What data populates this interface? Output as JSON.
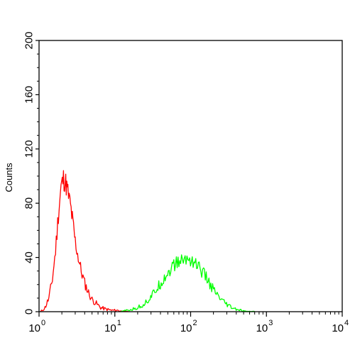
{
  "chart_data": {
    "type": "line",
    "ylabel": "Counts",
    "xscale": "log",
    "xlim": [
      1,
      10000
    ],
    "ylim": [
      0,
      200
    ],
    "grid": false,
    "x_ticks": [
      {
        "base": "10",
        "exp": "0",
        "value": 1
      },
      {
        "base": "10",
        "exp": "1",
        "value": 10
      },
      {
        "base": "10",
        "exp": "2",
        "value": 100
      },
      {
        "base": "10",
        "exp": "3",
        "value": 1000
      },
      {
        "base": "10",
        "exp": "4",
        "value": 10000
      }
    ],
    "y_ticks": [
      {
        "label": "0",
        "value": 0
      },
      {
        "label": "40",
        "value": 40
      },
      {
        "label": "80",
        "value": 80
      },
      {
        "label": "120",
        "value": 120
      },
      {
        "label": "160",
        "value": 160
      },
      {
        "label": "200",
        "value": 200
      }
    ],
    "series": [
      {
        "color": "#ff0000",
        "points": [
          [
            1.05,
            0
          ],
          [
            1.2,
            3
          ],
          [
            1.35,
            10
          ],
          [
            1.5,
            24
          ],
          [
            1.65,
            45
          ],
          [
            1.8,
            72
          ],
          [
            1.95,
            92
          ],
          [
            2.1,
            98
          ],
          [
            2.25,
            95
          ],
          [
            2.4,
            88
          ],
          [
            2.6,
            78
          ],
          [
            2.8,
            65
          ],
          [
            3.0,
            52
          ],
          [
            3.3,
            40
          ],
          [
            3.6,
            30
          ],
          [
            4.0,
            21
          ],
          [
            4.5,
            14
          ],
          [
            5.0,
            9
          ],
          [
            5.7,
            6
          ],
          [
            6.5,
            3
          ],
          [
            7.5,
            2
          ],
          [
            9.0,
            1
          ],
          [
            11,
            1
          ],
          [
            13,
            0
          ],
          [
            15,
            0
          ]
        ]
      },
      {
        "color": "#00ff00",
        "points": [
          [
            12,
            0
          ],
          [
            15,
            1
          ],
          [
            18,
            2
          ],
          [
            22,
            4
          ],
          [
            27,
            8
          ],
          [
            32,
            13
          ],
          [
            38,
            19
          ],
          [
            45,
            25
          ],
          [
            52,
            30
          ],
          [
            60,
            34
          ],
          [
            70,
            37
          ],
          [
            80,
            38
          ],
          [
            92,
            39
          ],
          [
            105,
            38
          ],
          [
            120,
            35
          ],
          [
            140,
            30
          ],
          [
            165,
            24
          ],
          [
            195,
            17
          ],
          [
            230,
            11
          ],
          [
            270,
            7
          ],
          [
            320,
            4
          ],
          [
            380,
            2
          ],
          [
            450,
            1
          ],
          [
            550,
            0
          ],
          [
            700,
            0
          ]
        ]
      }
    ]
  }
}
